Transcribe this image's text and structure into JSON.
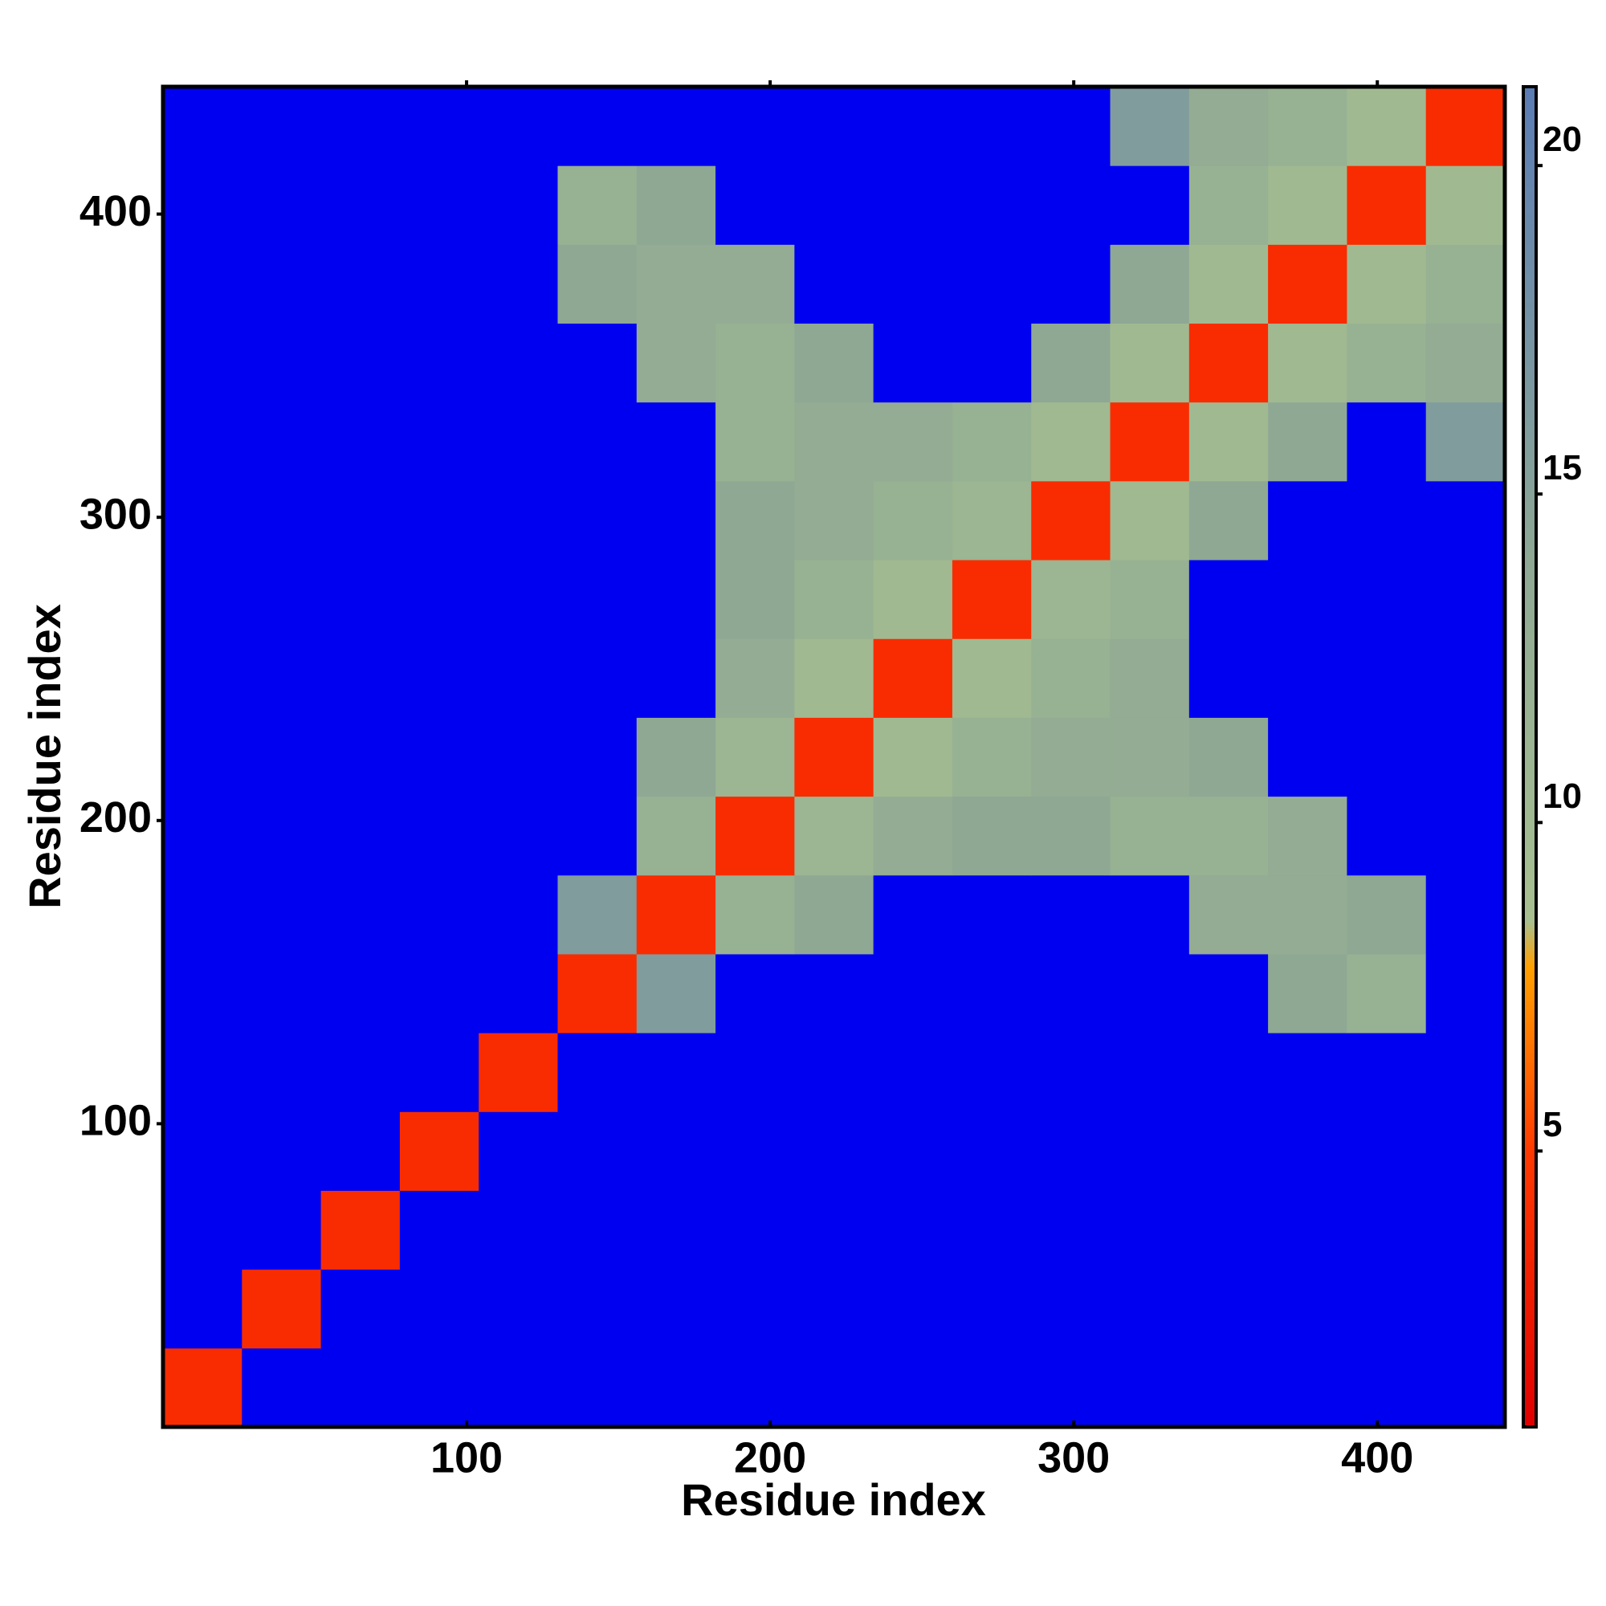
{
  "chart_data": {
    "type": "heatmap",
    "x_label": "Residue index",
    "y_label": "Residue index",
    "xlim": [
      0,
      442
    ],
    "ylim": [
      0,
      442
    ],
    "xticks": [
      100,
      200,
      300,
      400
    ],
    "yticks": [
      100,
      200,
      300,
      400
    ],
    "bins": [
      0,
      26,
      52,
      78,
      104,
      130,
      156,
      182,
      208,
      234,
      260,
      286,
      312,
      338,
      364,
      390,
      416,
      442
    ],
    "z": [
      [
        4,
        22,
        22,
        22,
        22,
        22,
        22,
        22,
        22,
        22,
        22,
        22,
        22,
        22,
        22,
        22,
        22
      ],
      [
        22,
        4,
        22,
        22,
        22,
        22,
        22,
        22,
        22,
        22,
        22,
        22,
        22,
        22,
        22,
        22,
        22
      ],
      [
        22,
        22,
        4,
        22,
        22,
        22,
        22,
        22,
        22,
        22,
        22,
        22,
        22,
        22,
        22,
        22,
        22
      ],
      [
        22,
        22,
        22,
        4,
        22,
        22,
        22,
        22,
        22,
        22,
        22,
        22,
        22,
        22,
        22,
        22,
        22
      ],
      [
        22,
        22,
        22,
        22,
        4,
        22,
        22,
        22,
        22,
        22,
        22,
        22,
        22,
        22,
        22,
        22,
        22
      ],
      [
        22,
        22,
        22,
        22,
        22,
        4,
        16,
        22,
        22,
        22,
        22,
        22,
        22,
        22,
        14,
        12,
        22
      ],
      [
        22,
        22,
        22,
        22,
        22,
        16,
        4,
        12,
        14,
        22,
        22,
        22,
        22,
        13,
        13,
        14,
        22
      ],
      [
        22,
        22,
        22,
        22,
        22,
        22,
        12,
        4,
        11,
        13,
        14,
        14,
        12,
        12,
        13,
        22,
        22
      ],
      [
        22,
        22,
        22,
        22,
        22,
        22,
        14,
        11,
        4,
        10,
        12,
        13,
        13,
        14,
        22,
        22,
        22
      ],
      [
        22,
        22,
        22,
        22,
        22,
        22,
        22,
        13,
        10,
        4,
        10,
        12,
        13,
        22,
        22,
        22,
        22
      ],
      [
        22,
        22,
        22,
        22,
        22,
        22,
        22,
        14,
        12,
        10,
        4,
        11,
        12,
        22,
        22,
        22,
        22
      ],
      [
        22,
        22,
        22,
        22,
        22,
        22,
        22,
        14,
        13,
        12,
        11,
        4,
        10,
        14,
        22,
        22,
        22
      ],
      [
        22,
        22,
        22,
        22,
        22,
        22,
        22,
        12,
        13,
        13,
        12,
        10,
        4,
        10,
        14,
        22,
        16
      ],
      [
        22,
        22,
        22,
        22,
        22,
        22,
        13,
        12,
        14,
        22,
        22,
        14,
        10,
        4,
        10,
        12,
        13
      ],
      [
        22,
        22,
        22,
        22,
        22,
        14,
        13,
        13,
        22,
        22,
        22,
        22,
        14,
        10,
        4,
        10,
        12
      ],
      [
        22,
        22,
        22,
        22,
        22,
        12,
        14,
        22,
        22,
        22,
        22,
        22,
        22,
        12,
        10,
        4,
        10
      ],
      [
        22,
        22,
        22,
        22,
        22,
        22,
        22,
        22,
        22,
        22,
        22,
        22,
        16,
        13,
        12,
        10,
        4
      ]
    ],
    "clim": [
      0.8,
      21.2
    ],
    "cticks": [
      5,
      10,
      15,
      20
    ],
    "colorscale": [
      {
        "value": 0.8,
        "color": "#e00000"
      },
      {
        "value": 5,
        "color": "#ff3a00"
      },
      {
        "value": 7.8,
        "color": "#ffa000"
      },
      {
        "value": 8.5,
        "color": "#a8c090"
      },
      {
        "value": 14,
        "color": "#8ea894"
      },
      {
        "value": 21.2,
        "color": "#5a7cb4"
      }
    ],
    "over_color": "#0000f0"
  }
}
